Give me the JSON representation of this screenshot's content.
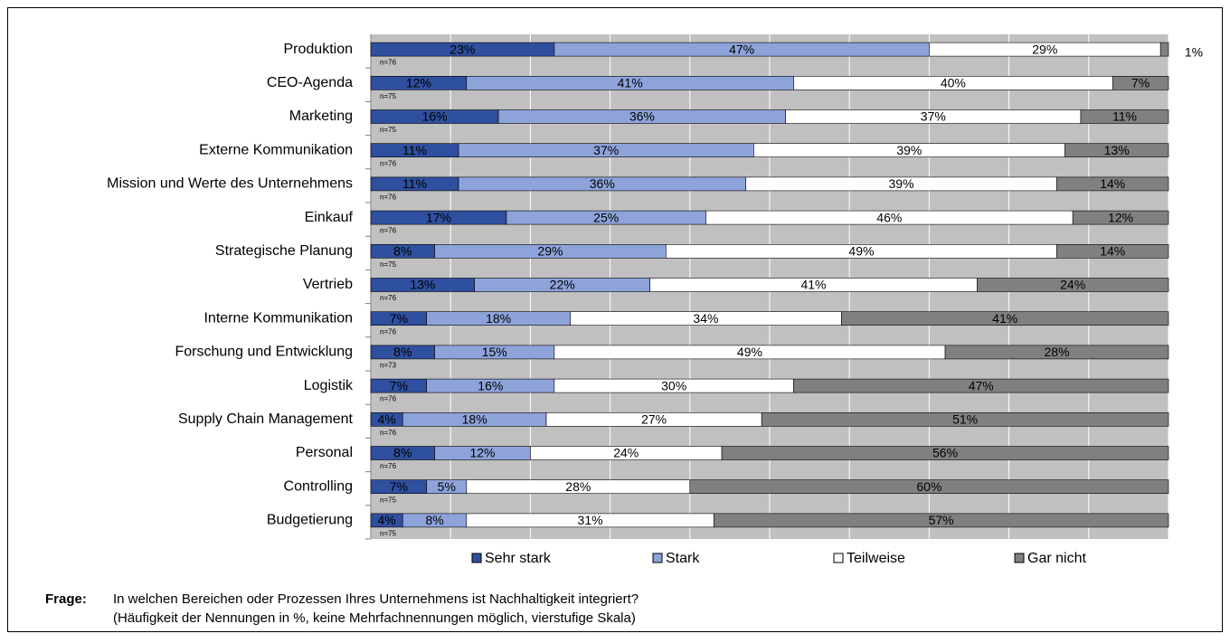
{
  "chart_data": {
    "type": "stacked-barh",
    "categories": [
      "Produktion",
      "CEO-Agenda",
      "Marketing",
      "Externe Kommunikation",
      "Mission und Werte des Unternehmens",
      "Einkauf",
      "Strategische Planung",
      "Vertrieb",
      "Interne Kommunikation",
      "Forschung und Entwicklung",
      "Logistik",
      "Supply Chain Management",
      "Personal",
      "Controlling",
      "Budgetierung"
    ],
    "n_labels": [
      "n=76",
      "n=75",
      "n=75",
      "n=76",
      "n=76",
      "n=76",
      "n=75",
      "n=76",
      "n=76",
      "n=73",
      "n=76",
      "n=76",
      "n=76",
      "n=75",
      "n=75"
    ],
    "series": [
      {
        "name": "Sehr stark",
        "color": "#2f4f9f",
        "values": [
          23,
          12,
          16,
          11,
          11,
          17,
          8,
          13,
          7,
          8,
          7,
          4,
          8,
          7,
          4
        ],
        "value_labels": [
          "23%",
          "12%",
          "16%",
          "11%",
          "11%",
          "17%",
          "8%",
          "13%",
          "7%",
          "8%",
          "7%",
          "4%",
          "8%",
          "7%",
          "4%"
        ]
      },
      {
        "name": "Stark",
        "color": "#8ea3da",
        "values": [
          47,
          41,
          36,
          37,
          36,
          25,
          29,
          22,
          18,
          15,
          16,
          18,
          12,
          5,
          8
        ],
        "value_labels": [
          "47%",
          "41%",
          "36%",
          "37%",
          "36%",
          "25%",
          "29%",
          "22%",
          "18%",
          "15%",
          "16%",
          "18%",
          "12%",
          "5%",
          "8%"
        ]
      },
      {
        "name": "Teilweise",
        "color": "#ffffff",
        "values": [
          29,
          40,
          37,
          39,
          39,
          46,
          49,
          41,
          34,
          49,
          30,
          27,
          24,
          28,
          31
        ],
        "value_labels": [
          "29%",
          "40%",
          "37%",
          "39%",
          "39%",
          "46%",
          "49%",
          "41%",
          "34%",
          "49%",
          "30%",
          "27%",
          "24%",
          "28%",
          "31%"
        ]
      },
      {
        "name": "Gar nicht",
        "color": "#808080",
        "values": [
          1,
          7,
          11,
          13,
          14,
          12,
          14,
          24,
          41,
          28,
          47,
          51,
          56,
          60,
          57
        ],
        "value_labels": [
          "1%",
          "7%",
          "11%",
          "13%",
          "14%",
          "12%",
          "14%",
          "24%",
          "41%",
          "28%",
          "47%",
          "51%",
          "56%",
          "60%",
          "57%"
        ]
      }
    ],
    "xlim": [
      0,
      100
    ],
    "xticks": [
      0,
      10,
      20,
      30,
      40,
      50,
      60,
      70,
      80,
      90,
      100
    ],
    "grid": true,
    "plot_background": "#c0c0c0",
    "legend": "bottom"
  },
  "footer": {
    "label": "Frage:",
    "question": "In welchen Bereichen oder Prozessen Ihres Unternehmens ist Nachhaltigkeit integriert?",
    "note": "(Häufigkeit der Nennungen in %, keine Mehrfachnennungen möglich, vierstufige Skala)"
  }
}
